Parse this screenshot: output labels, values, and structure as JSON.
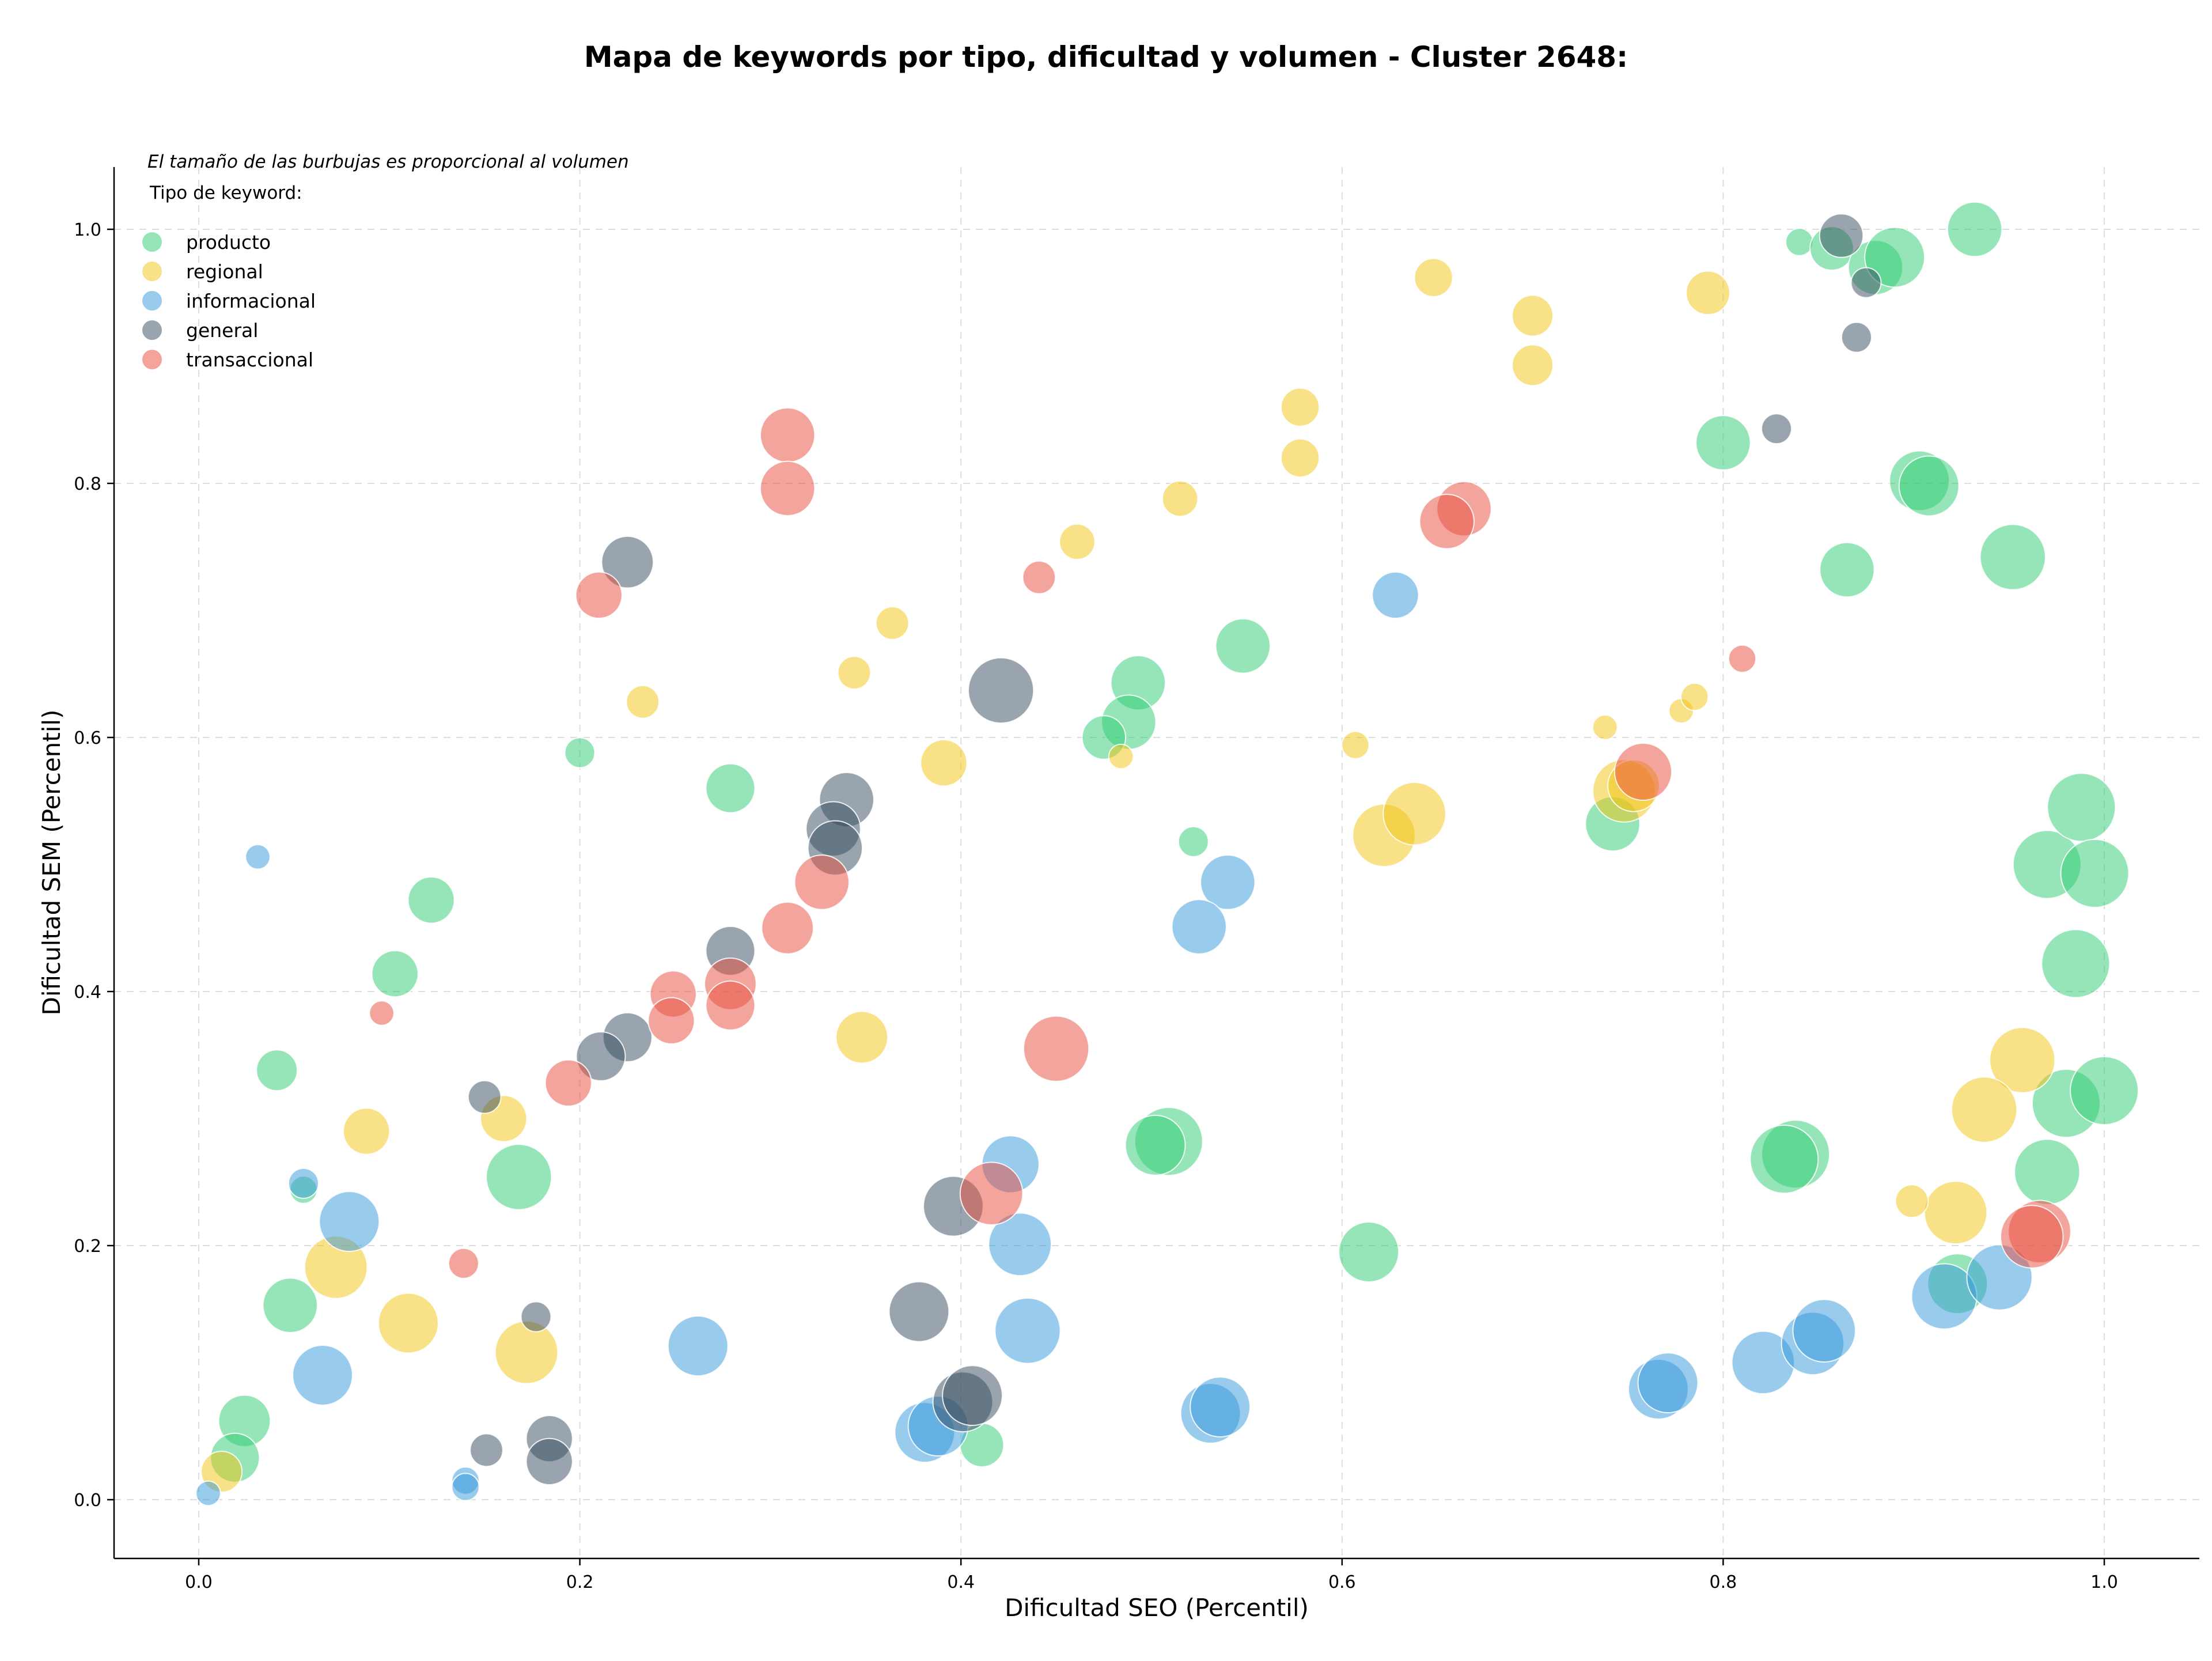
{
  "colors": {
    "producto": "#2ecc71",
    "regional": "#f1c40f",
    "informacional": "#3498db",
    "general": "#34495e",
    "transaccional": "#e74c3c"
  },
  "chart_data": {
    "type": "scatter",
    "title": "Mapa de keywords por tipo, dificultad y volumen - Cluster 2648:",
    "xlabel": "Dificultad SEO (Percentil)",
    "ylabel": "Dificultad SEM (Percentil)",
    "xlim": [
      -0.045,
      1.05
    ],
    "ylim": [
      -0.045,
      1.05
    ],
    "xticks": [
      "0.0",
      "0.2",
      "0.4",
      "0.6",
      "0.8",
      "1.0"
    ],
    "yticks": [
      "0.0",
      "0.2",
      "0.4",
      "0.6",
      "0.8",
      "1.0"
    ],
    "grid": true,
    "legend_position": "top-left",
    "note": "El tamaño de las burbujas es proporcional al volumen",
    "legend_title": "Tipo de keyword:",
    "legend": [
      {
        "key": "producto",
        "label": "producto"
      },
      {
        "key": "regional",
        "label": "regional"
      },
      {
        "key": "informacional",
        "label": "informacional"
      },
      {
        "key": "general",
        "label": "general"
      },
      {
        "key": "transaccional",
        "label": "transaccional"
      }
    ],
    "series": [
      {
        "key": "producto",
        "points": [
          {
            "x": 0.84,
            "y": 0.99,
            "size": 20
          },
          {
            "x": 0.857,
            "y": 0.985,
            "size": 32
          },
          {
            "x": 0.88,
            "y": 0.97,
            "size": 40
          },
          {
            "x": 0.89,
            "y": 0.978,
            "size": 44
          },
          {
            "x": 0.932,
            "y": 1.0,
            "size": 40
          },
          {
            "x": 0.8,
            "y": 0.832,
            "size": 40
          },
          {
            "x": 0.903,
            "y": 0.802,
            "size": 44
          },
          {
            "x": 0.908,
            "y": 0.798,
            "size": 44
          },
          {
            "x": 0.952,
            "y": 0.742,
            "size": 48
          },
          {
            "x": 0.865,
            "y": 0.732,
            "size": 40
          },
          {
            "x": 0.548,
            "y": 0.672,
            "size": 40
          },
          {
            "x": 0.493,
            "y": 0.643,
            "size": 40
          },
          {
            "x": 0.488,
            "y": 0.612,
            "size": 40
          },
          {
            "x": 0.475,
            "y": 0.6,
            "size": 32
          },
          {
            "x": 0.279,
            "y": 0.56,
            "size": 36
          },
          {
            "x": 0.2,
            "y": 0.588,
            "size": 22
          },
          {
            "x": 0.122,
            "y": 0.472,
            "size": 34
          },
          {
            "x": 0.103,
            "y": 0.414,
            "size": 34
          },
          {
            "x": 0.041,
            "y": 0.338,
            "size": 30
          },
          {
            "x": 0.168,
            "y": 0.254,
            "size": 48
          },
          {
            "x": 0.055,
            "y": 0.244,
            "size": 20
          },
          {
            "x": 0.048,
            "y": 0.153,
            "size": 40
          },
          {
            "x": 0.024,
            "y": 0.062,
            "size": 38
          },
          {
            "x": 0.019,
            "y": 0.033,
            "size": 36
          },
          {
            "x": 0.522,
            "y": 0.518,
            "size": 22
          },
          {
            "x": 0.742,
            "y": 0.532,
            "size": 40
          },
          {
            "x": 0.509,
            "y": 0.282,
            "size": 50
          },
          {
            "x": 0.502,
            "y": 0.279,
            "size": 44
          },
          {
            "x": 0.411,
            "y": 0.043,
            "size": 32
          },
          {
            "x": 0.614,
            "y": 0.195,
            "size": 44
          },
          {
            "x": 0.838,
            "y": 0.272,
            "size": 50
          },
          {
            "x": 0.832,
            "y": 0.268,
            "size": 50
          },
          {
            "x": 0.923,
            "y": 0.17,
            "size": 44
          },
          {
            "x": 0.97,
            "y": 0.5,
            "size": 50
          },
          {
            "x": 0.988,
            "y": 0.545,
            "size": 50
          },
          {
            "x": 0.995,
            "y": 0.493,
            "size": 50
          },
          {
            "x": 0.985,
            "y": 0.422,
            "size": 50
          },
          {
            "x": 0.98,
            "y": 0.312,
            "size": 50
          },
          {
            "x": 1.0,
            "y": 0.322,
            "size": 50
          },
          {
            "x": 0.97,
            "y": 0.258,
            "size": 48
          }
        ]
      },
      {
        "key": "regional",
        "points": [
          {
            "x": 0.648,
            "y": 0.962,
            "size": 28
          },
          {
            "x": 0.7,
            "y": 0.932,
            "size": 30
          },
          {
            "x": 0.7,
            "y": 0.893,
            "size": 30
          },
          {
            "x": 0.792,
            "y": 0.95,
            "size": 32
          },
          {
            "x": 0.578,
            "y": 0.86,
            "size": 28
          },
          {
            "x": 0.578,
            "y": 0.82,
            "size": 28
          },
          {
            "x": 0.515,
            "y": 0.788,
            "size": 26
          },
          {
            "x": 0.461,
            "y": 0.754,
            "size": 26
          },
          {
            "x": 0.364,
            "y": 0.69,
            "size": 24
          },
          {
            "x": 0.344,
            "y": 0.651,
            "size": 24
          },
          {
            "x": 0.233,
            "y": 0.628,
            "size": 24
          },
          {
            "x": 0.391,
            "y": 0.58,
            "size": 34
          },
          {
            "x": 0.484,
            "y": 0.585,
            "size": 18
          },
          {
            "x": 0.607,
            "y": 0.594,
            "size": 20
          },
          {
            "x": 0.738,
            "y": 0.608,
            "size": 18
          },
          {
            "x": 0.778,
            "y": 0.621,
            "size": 18
          },
          {
            "x": 0.785,
            "y": 0.632,
            "size": 20
          },
          {
            "x": 0.622,
            "y": 0.523,
            "size": 46
          },
          {
            "x": 0.638,
            "y": 0.54,
            "size": 46
          },
          {
            "x": 0.748,
            "y": 0.558,
            "size": 46
          },
          {
            "x": 0.753,
            "y": 0.562,
            "size": 38
          },
          {
            "x": 0.348,
            "y": 0.364,
            "size": 38
          },
          {
            "x": 0.16,
            "y": 0.3,
            "size": 34
          },
          {
            "x": 0.088,
            "y": 0.29,
            "size": 34
          },
          {
            "x": 0.072,
            "y": 0.183,
            "size": 46
          },
          {
            "x": 0.11,
            "y": 0.139,
            "size": 44
          },
          {
            "x": 0.172,
            "y": 0.116,
            "size": 46
          },
          {
            "x": 0.012,
            "y": 0.022,
            "size": 30
          },
          {
            "x": 0.957,
            "y": 0.346,
            "size": 48
          },
          {
            "x": 0.937,
            "y": 0.307,
            "size": 48
          },
          {
            "x": 0.922,
            "y": 0.226,
            "size": 46
          },
          {
            "x": 0.899,
            "y": 0.235,
            "size": 24
          }
        ]
      },
      {
        "key": "informacional",
        "points": [
          {
            "x": 0.031,
            "y": 0.506,
            "size": 18
          },
          {
            "x": 0.628,
            "y": 0.712,
            "size": 34
          },
          {
            "x": 0.54,
            "y": 0.486,
            "size": 40
          },
          {
            "x": 0.525,
            "y": 0.451,
            "size": 40
          },
          {
            "x": 0.426,
            "y": 0.264,
            "size": 42
          },
          {
            "x": 0.431,
            "y": 0.201,
            "size": 46
          },
          {
            "x": 0.435,
            "y": 0.133,
            "size": 48
          },
          {
            "x": 0.262,
            "y": 0.121,
            "size": 44
          },
          {
            "x": 0.079,
            "y": 0.219,
            "size": 44
          },
          {
            "x": 0.065,
            "y": 0.098,
            "size": 44
          },
          {
            "x": 0.055,
            "y": 0.249,
            "size": 22
          },
          {
            "x": 0.14,
            "y": 0.015,
            "size": 20
          },
          {
            "x": 0.14,
            "y": 0.01,
            "size": 20
          },
          {
            "x": 0.005,
            "y": 0.005,
            "size": 18
          },
          {
            "x": 0.381,
            "y": 0.053,
            "size": 44
          },
          {
            "x": 0.388,
            "y": 0.058,
            "size": 44
          },
          {
            "x": 0.531,
            "y": 0.068,
            "size": 44
          },
          {
            "x": 0.536,
            "y": 0.073,
            "size": 44
          },
          {
            "x": 0.766,
            "y": 0.087,
            "size": 44
          },
          {
            "x": 0.771,
            "y": 0.092,
            "size": 44
          },
          {
            "x": 0.821,
            "y": 0.108,
            "size": 46
          },
          {
            "x": 0.847,
            "y": 0.123,
            "size": 46
          },
          {
            "x": 0.853,
            "y": 0.133,
            "size": 46
          },
          {
            "x": 0.916,
            "y": 0.16,
            "size": 48
          },
          {
            "x": 0.945,
            "y": 0.175,
            "size": 48
          }
        ]
      },
      {
        "key": "general",
        "points": [
          {
            "x": 0.862,
            "y": 0.995,
            "size": 32
          },
          {
            "x": 0.875,
            "y": 0.958,
            "size": 22
          },
          {
            "x": 0.87,
            "y": 0.915,
            "size": 22
          },
          {
            "x": 0.828,
            "y": 0.843,
            "size": 22
          },
          {
            "x": 0.225,
            "y": 0.738,
            "size": 38
          },
          {
            "x": 0.421,
            "y": 0.637,
            "size": 48
          },
          {
            "x": 0.34,
            "y": 0.551,
            "size": 40
          },
          {
            "x": 0.333,
            "y": 0.528,
            "size": 40
          },
          {
            "x": 0.334,
            "y": 0.513,
            "size": 40
          },
          {
            "x": 0.279,
            "y": 0.432,
            "size": 36
          },
          {
            "x": 0.225,
            "y": 0.364,
            "size": 36
          },
          {
            "x": 0.211,
            "y": 0.349,
            "size": 36
          },
          {
            "x": 0.15,
            "y": 0.317,
            "size": 24
          },
          {
            "x": 0.396,
            "y": 0.231,
            "size": 44
          },
          {
            "x": 0.378,
            "y": 0.148,
            "size": 44
          },
          {
            "x": 0.177,
            "y": 0.144,
            "size": 22
          },
          {
            "x": 0.184,
            "y": 0.048,
            "size": 34
          },
          {
            "x": 0.184,
            "y": 0.03,
            "size": 34
          },
          {
            "x": 0.151,
            "y": 0.039,
            "size": 24
          },
          {
            "x": 0.401,
            "y": 0.077,
            "size": 44
          },
          {
            "x": 0.406,
            "y": 0.082,
            "size": 44
          }
        ]
      },
      {
        "key": "transaccional",
        "points": [
          {
            "x": 0.309,
            "y": 0.838,
            "size": 40
          },
          {
            "x": 0.309,
            "y": 0.796,
            "size": 40
          },
          {
            "x": 0.21,
            "y": 0.712,
            "size": 34
          },
          {
            "x": 0.664,
            "y": 0.78,
            "size": 40
          },
          {
            "x": 0.655,
            "y": 0.77,
            "size": 40
          },
          {
            "x": 0.441,
            "y": 0.726,
            "size": 24
          },
          {
            "x": 0.81,
            "y": 0.662,
            "size": 20
          },
          {
            "x": 0.758,
            "y": 0.573,
            "size": 42
          },
          {
            "x": 0.327,
            "y": 0.486,
            "size": 40
          },
          {
            "x": 0.309,
            "y": 0.45,
            "size": 38
          },
          {
            "x": 0.279,
            "y": 0.406,
            "size": 38
          },
          {
            "x": 0.279,
            "y": 0.389,
            "size": 36
          },
          {
            "x": 0.249,
            "y": 0.398,
            "size": 34
          },
          {
            "x": 0.248,
            "y": 0.377,
            "size": 34
          },
          {
            "x": 0.194,
            "y": 0.328,
            "size": 34
          },
          {
            "x": 0.45,
            "y": 0.355,
            "size": 48
          },
          {
            "x": 0.416,
            "y": 0.241,
            "size": 46
          },
          {
            "x": 0.096,
            "y": 0.383,
            "size": 18
          },
          {
            "x": 0.139,
            "y": 0.186,
            "size": 22
          },
          {
            "x": 0.966,
            "y": 0.211,
            "size": 46
          },
          {
            "x": 0.962,
            "y": 0.207,
            "size": 46
          }
        ]
      }
    ]
  }
}
